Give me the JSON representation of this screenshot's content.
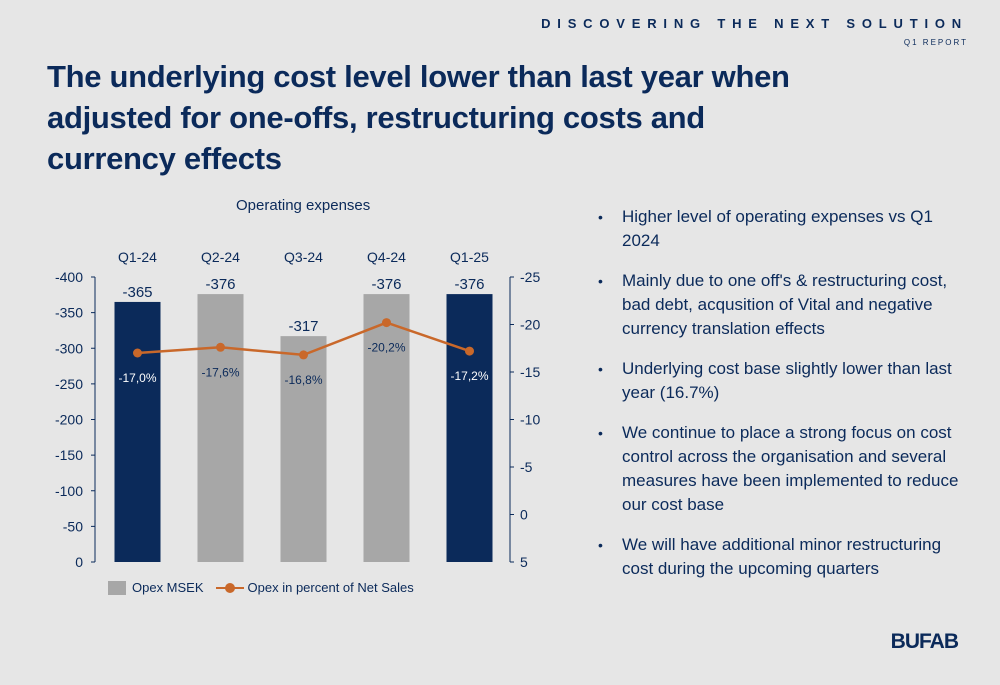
{
  "header": {
    "tagline": "DISCOVERING THE NEXT SOLUTION",
    "report": "Q1 REPORT"
  },
  "title": "The underlying cost level lower than last year when adjusted for one-offs, restructuring costs and currency effects",
  "chart_data": {
    "type": "bar",
    "title": "Operating expenses",
    "categories": [
      "Q1-24",
      "Q2-24",
      "Q3-24",
      "Q4-24",
      "Q1-25"
    ],
    "series": [
      {
        "name": "Opex MSEK",
        "values": [
          -365,
          -376,
          -317,
          -376,
          -376
        ],
        "labels": [
          "-365",
          "-376",
          "-317",
          "-376",
          "-376"
        ],
        "colors": [
          "#0b2a5a",
          "#a7a7a7",
          "#a7a7a7",
          "#a7a7a7",
          "#0b2a5a"
        ],
        "axis": "left"
      },
      {
        "name": "Opex in percent of Net Sales",
        "type": "line",
        "values": [
          -17.0,
          -17.6,
          -16.8,
          -20.2,
          -17.2
        ],
        "labels": [
          "-17,0%",
          "-17,6%",
          "-16,8%",
          "-20,2%",
          "-17,2%"
        ],
        "color": "#c9682a",
        "axis": "right"
      }
    ],
    "y_left": {
      "range": [
        0,
        -400
      ],
      "ticks": [
        "-400",
        "-350",
        "-300",
        "-250",
        "-200",
        "-150",
        "-100",
        "-50",
        "0"
      ]
    },
    "y_right": {
      "range": [
        5,
        -25
      ],
      "ticks": [
        "-25",
        "-20",
        "-15",
        "-10",
        "-5",
        "0",
        "5"
      ]
    },
    "legend": "bottom-left",
    "grid": false
  },
  "bullets": [
    "Higher level of operating expenses vs Q1 2024",
    "Mainly due to one off's & restructuring cost, bad debt, acqusition of Vital and negative currency translation effects",
    "Underlying cost base slightly lower than last year (16.7%)",
    "We continue to place a strong focus on cost control across the organisation and several measures have been implemented to reduce our cost base",
    "We will have additional minor restructuring cost during the upcoming quarters"
  ],
  "logo": "BUFAB"
}
